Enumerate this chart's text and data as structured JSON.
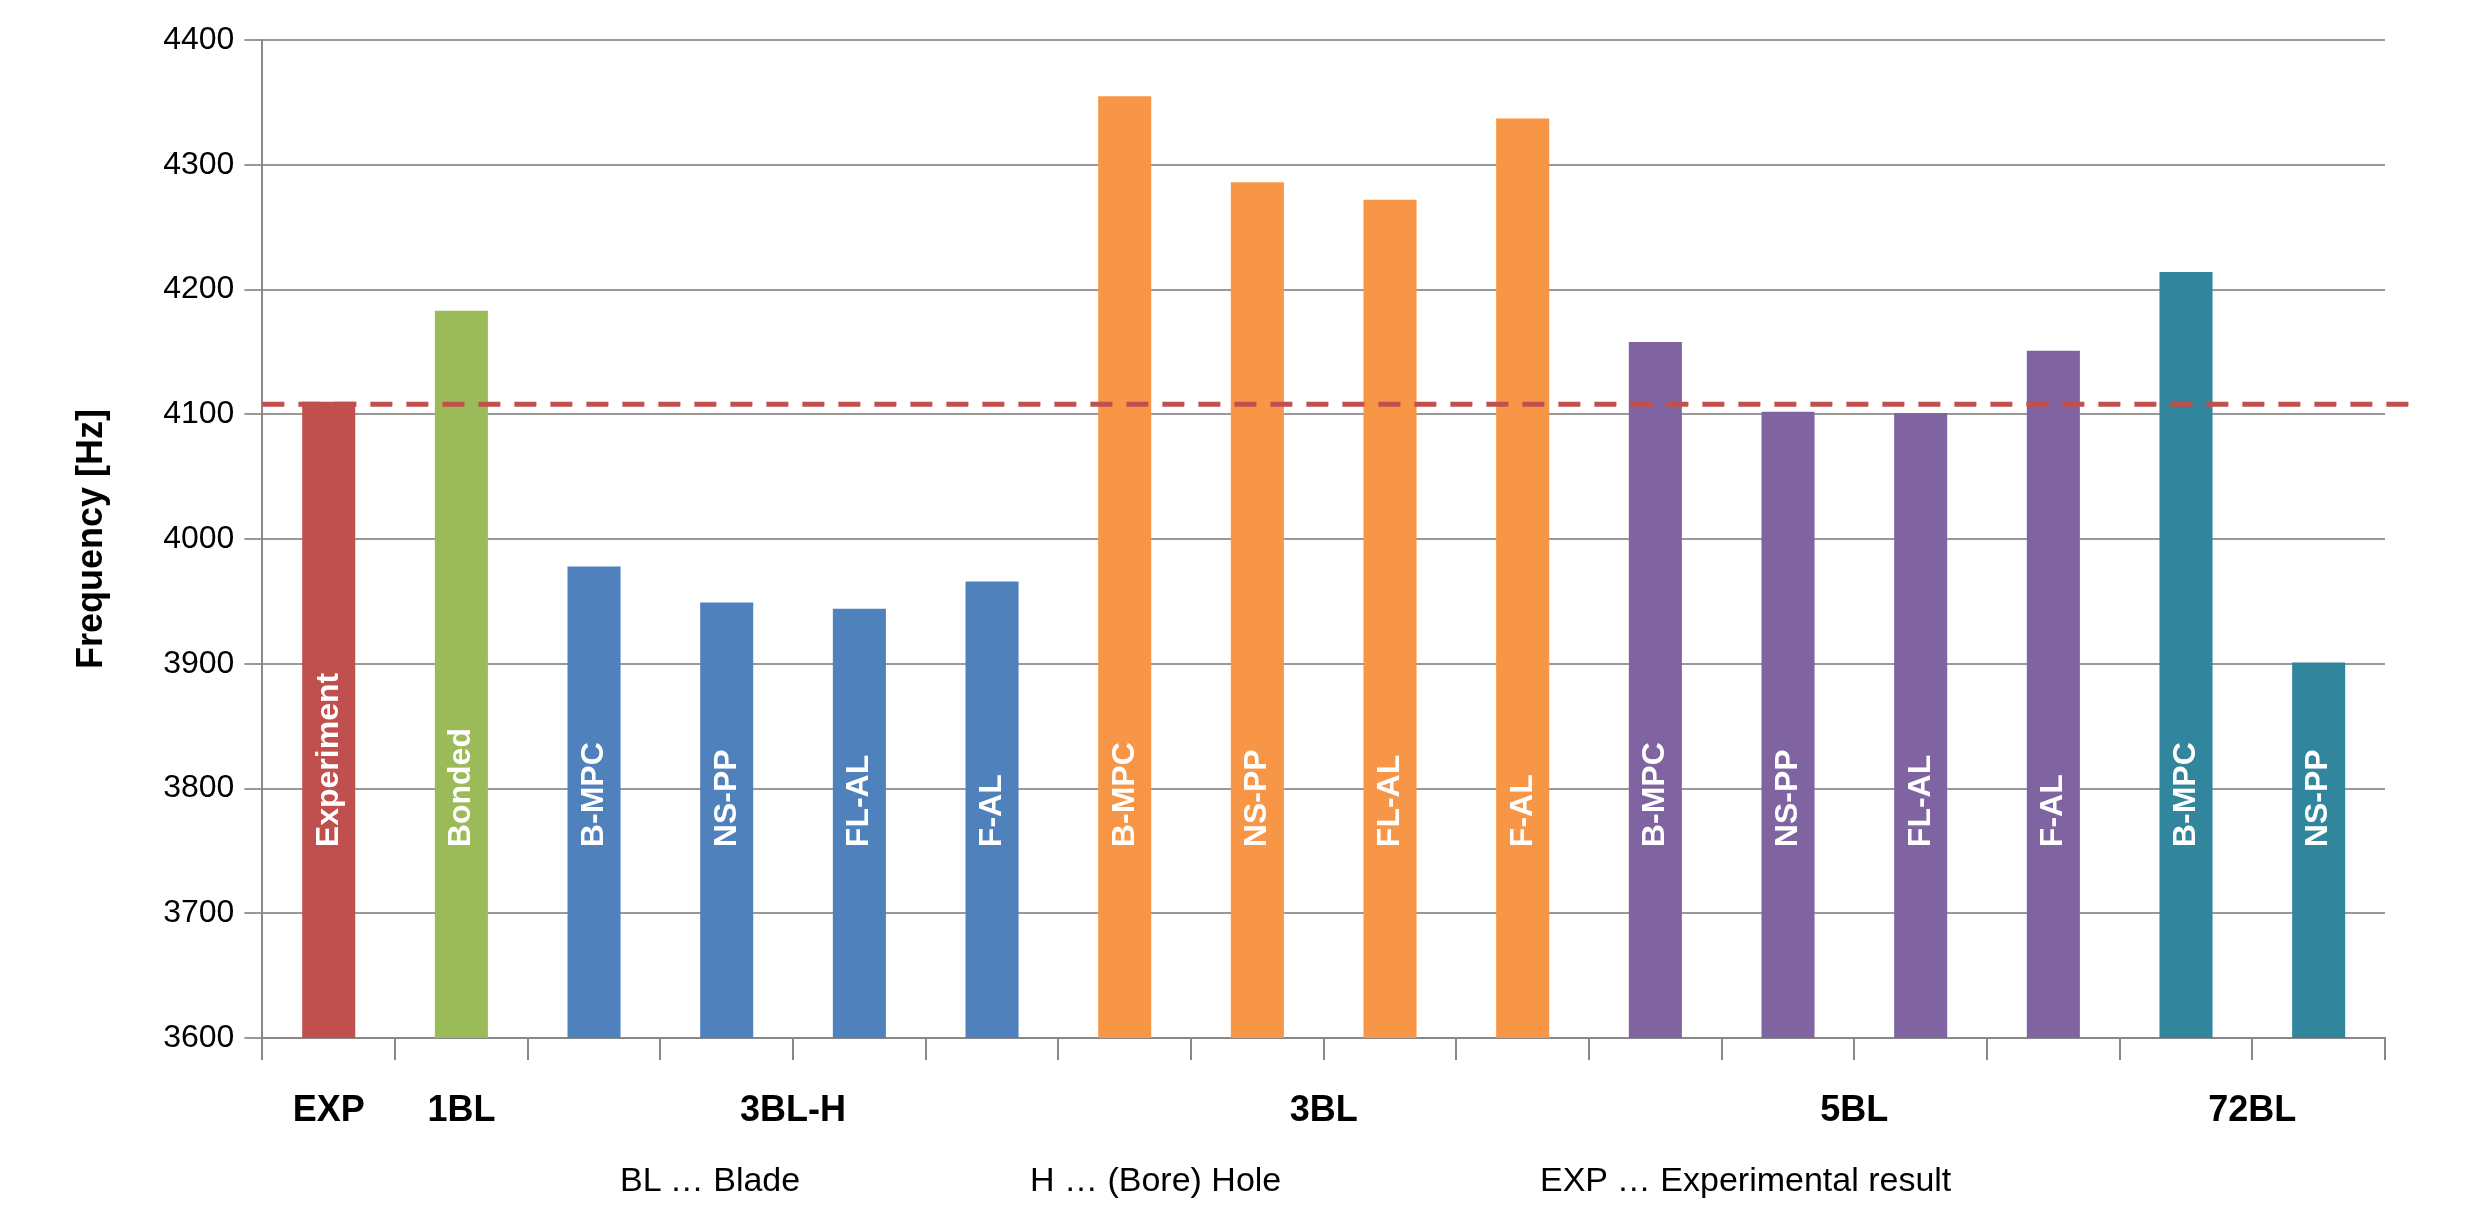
{
  "chart_data": {
    "type": "bar",
    "ylabel": "Frequency [Hz]",
    "categories": [
      "Experiment",
      "Bonded",
      "B-MPC",
      "NS-PP",
      "FL-AL",
      "F-AL",
      "B-MPC",
      "NS-PP",
      "FL-AL",
      "F-AL",
      "B-MPC",
      "NS-PP",
      "FL-AL",
      "F-AL",
      "B-MPC",
      "NS-PP"
    ],
    "series": [
      {
        "name": "EXP",
        "color": "#c0504d",
        "values": [
          4110,
          null,
          null,
          null,
          null,
          null,
          null,
          null,
          null,
          null,
          null,
          null,
          null,
          null,
          null,
          null
        ]
      },
      {
        "name": "1BL",
        "color": "#9bbb59",
        "values": [
          null,
          4183,
          null,
          null,
          null,
          null,
          null,
          null,
          null,
          null,
          null,
          null,
          null,
          null,
          null,
          null
        ]
      },
      {
        "name": "3BL-H",
        "color": "#4f81bd",
        "values": [
          null,
          null,
          3978,
          3949,
          3944,
          3966,
          null,
          null,
          null,
          null,
          null,
          null,
          null,
          null,
          null,
          null
        ]
      },
      {
        "name": "3BL",
        "color": "#f79646",
        "values": [
          null,
          null,
          null,
          null,
          null,
          null,
          4355,
          4286,
          4272,
          4337,
          null,
          null,
          null,
          null,
          null,
          null
        ]
      },
      {
        "name": "5BL",
        "color": "#8064a2",
        "values": [
          null,
          null,
          null,
          null,
          null,
          null,
          null,
          null,
          null,
          null,
          4158,
          4102,
          4101,
          4151,
          null,
          null
        ]
      },
      {
        "name": "72BL",
        "color": "#31859c",
        "values": [
          null,
          null,
          null,
          null,
          null,
          null,
          null,
          null,
          null,
          null,
          null,
          null,
          null,
          null,
          4214,
          3901
        ]
      }
    ],
    "ylim": [
      3600,
      4400
    ],
    "yticks": [
      3600,
      3700,
      3800,
      3900,
      4000,
      4100,
      4200,
      4300,
      4400
    ],
    "grid": "y",
    "legend": false,
    "ref_lines": [
      {
        "axis": "y",
        "value": 4108,
        "color": "#c0504d",
        "line_style": "dashed"
      }
    ],
    "annotations": [
      "BL … Blade",
      "H … (Bore) Hole",
      "EXP … Experimental result"
    ]
  }
}
